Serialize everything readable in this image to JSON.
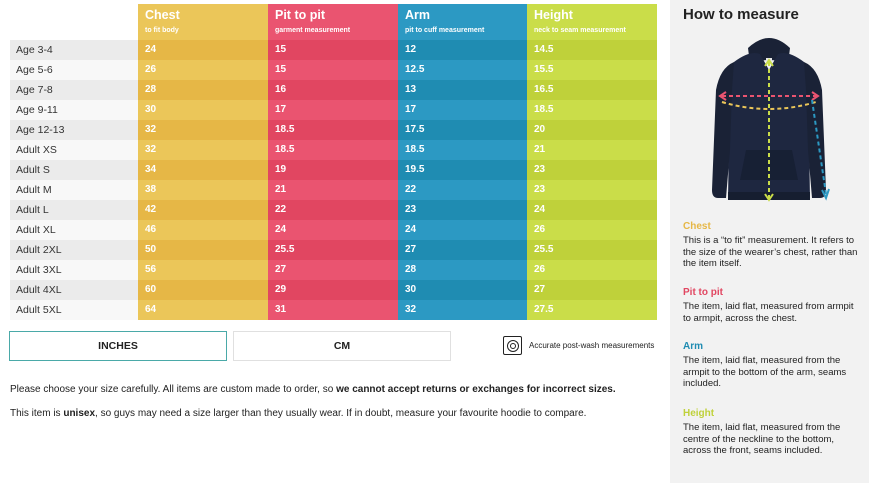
{
  "table": {
    "columns": [
      {
        "title": "Chest",
        "sub": "to fit body",
        "key": "chest",
        "color": "#ebc659"
      },
      {
        "title": "Pit to pit",
        "sub": "garment measurement",
        "key": "pit",
        "color": "#ea5470"
      },
      {
        "title": "Arm",
        "sub": "pit to cuff measurement",
        "key": "arm",
        "color": "#2c99c3"
      },
      {
        "title": "Height",
        "sub": "neck to seam measurement",
        "key": "height",
        "color": "#cadd49"
      }
    ],
    "rows": [
      {
        "size": "Age 3-4",
        "chest": "24",
        "pit": "15",
        "arm": "12",
        "height": "14.5"
      },
      {
        "size": "Age 5-6",
        "chest": "26",
        "pit": "15",
        "arm": "12.5",
        "height": "15.5"
      },
      {
        "size": "Age 7-8",
        "chest": "28",
        "pit": "16",
        "arm": "13",
        "height": "16.5"
      },
      {
        "size": "Age 9-11",
        "chest": "30",
        "pit": "17",
        "arm": "17",
        "height": "18.5"
      },
      {
        "size": "Age 12-13",
        "chest": "32",
        "pit": "18.5",
        "arm": "17.5",
        "height": "20"
      },
      {
        "size": "Adult XS",
        "chest": "32",
        "pit": "18.5",
        "arm": "18.5",
        "height": "21"
      },
      {
        "size": "Adult S",
        "chest": "34",
        "pit": "19",
        "arm": "19.5",
        "height": "23"
      },
      {
        "size": "Adult M",
        "chest": "38",
        "pit": "21",
        "arm": "22",
        "height": "23"
      },
      {
        "size": "Adult L",
        "chest": "42",
        "pit": "22",
        "arm": "23",
        "height": "24"
      },
      {
        "size": "Adult XL",
        "chest": "46",
        "pit": "24",
        "arm": "24",
        "height": "26"
      },
      {
        "size": "Adult 2XL",
        "chest": "50",
        "pit": "25.5",
        "arm": "27",
        "height": "25.5"
      },
      {
        "size": "Adult 3XL",
        "chest": "56",
        "pit": "27",
        "arm": "28",
        "height": "26"
      },
      {
        "size": "Adult 4XL",
        "chest": "60",
        "pit": "29",
        "arm": "30",
        "height": "27"
      },
      {
        "size": "Adult 5XL",
        "chest": "64",
        "pit": "31",
        "arm": "32",
        "height": "27.5"
      }
    ]
  },
  "units": {
    "inches_label": "INCHES",
    "cm_label": "CM",
    "selected": "INCHES"
  },
  "wash": {
    "icon": "washing-machine-icon",
    "label": "Accurate post-wash measurements"
  },
  "notes": {
    "line1_pre": "Please choose your size carefully. All items are custom made to order, so ",
    "line1_bold": "we cannot accept returns or exchanges for incorrect sizes.",
    "line2_pre": "This item is ",
    "line2_bold": "unisex",
    "line2_post": ", so guys may need a size larger than they usually wear. If in doubt, measure your favourite hoodie to compare."
  },
  "measure": {
    "title": "How to measure",
    "image_icon": "hoodie-measurement-diagram",
    "sections": [
      {
        "title": "Chest",
        "color": "#e6b746",
        "text": "This is a “to fit” measurement. It refers to the size of the wearer’s chest, rather than the item itself."
      },
      {
        "title": "Pit to pit",
        "color": "#e14661",
        "text": "The item, laid flat, measured from armpit to armpit, across the chest."
      },
      {
        "title": "Arm",
        "color": "#1f8cb2",
        "text": "The item, laid flat, measured from the armpit to the bottom of the arm, seams included."
      },
      {
        "title": "Height",
        "color": "#bfd13a",
        "text": "The item, laid flat, measured from the centre of the neckline to the bottom, across the front, seams included."
      }
    ]
  }
}
